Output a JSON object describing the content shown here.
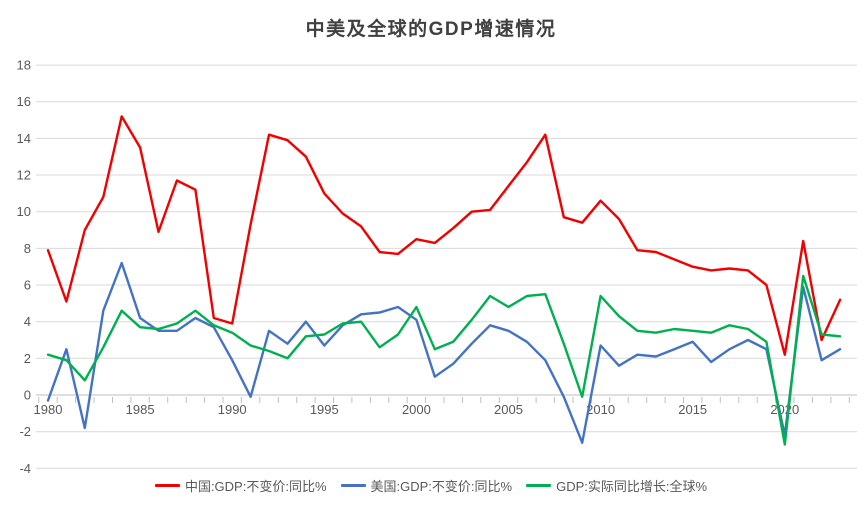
{
  "chart_data": {
    "type": "line",
    "title": "中美及全球的GDP增速情况",
    "xlabel": "",
    "ylabel": "",
    "ylim": [
      -4,
      18
    ],
    "ytick_step": 2,
    "x_ticks": [
      1980,
      1985,
      1990,
      1995,
      2000,
      2005,
      2010,
      2015,
      2020
    ],
    "grid": true,
    "legend_position": "bottom",
    "x": [
      1980,
      1981,
      1982,
      1983,
      1984,
      1985,
      1986,
      1987,
      1988,
      1989,
      1990,
      1991,
      1992,
      1993,
      1994,
      1995,
      1996,
      1997,
      1998,
      1999,
      2000,
      2001,
      2002,
      2003,
      2004,
      2005,
      2006,
      2007,
      2008,
      2009,
      2010,
      2011,
      2012,
      2013,
      2014,
      2015,
      2016,
      2017,
      2018,
      2019,
      2020,
      2021,
      2022,
      2023
    ],
    "series": [
      {
        "name": "中国:GDP:不变价:同比%",
        "color": "#f20000",
        "values": [
          7.9,
          5.1,
          9.0,
          10.8,
          15.2,
          13.5,
          8.9,
          11.7,
          11.2,
          4.2,
          3.9,
          9.3,
          14.2,
          13.9,
          13.0,
          11.0,
          9.9,
          9.2,
          7.8,
          7.7,
          8.5,
          8.3,
          9.1,
          10.0,
          10.1,
          11.4,
          12.7,
          14.2,
          9.7,
          9.4,
          10.6,
          9.6,
          7.9,
          7.8,
          7.4,
          7.0,
          6.8,
          6.9,
          6.8,
          6.0,
          2.2,
          8.4,
          3.0,
          5.2
        ]
      },
      {
        "name": "美国:GDP:不变价:同比%",
        "color": "#4472c4",
        "values": [
          -0.3,
          2.5,
          -1.8,
          4.6,
          7.2,
          4.2,
          3.5,
          3.5,
          4.2,
          3.7,
          1.9,
          -0.1,
          3.5,
          2.8,
          4.0,
          2.7,
          3.8,
          4.4,
          4.5,
          4.8,
          4.1,
          1.0,
          1.7,
          2.8,
          3.8,
          3.5,
          2.9,
          1.9,
          -0.1,
          -2.6,
          2.7,
          1.6,
          2.2,
          2.1,
          2.5,
          2.9,
          1.8,
          2.5,
          3.0,
          2.5,
          -2.2,
          5.9,
          1.9,
          2.5
        ]
      },
      {
        "name": "GDP:实际同比增长:全球%",
        "color": "#00b050",
        "values": [
          2.2,
          1.9,
          0.8,
          2.6,
          4.6,
          3.7,
          3.6,
          3.9,
          4.6,
          3.8,
          3.4,
          2.7,
          2.4,
          2.0,
          3.2,
          3.3,
          3.9,
          4.0,
          2.6,
          3.3,
          4.8,
          2.5,
          2.9,
          4.1,
          5.4,
          4.8,
          5.4,
          5.5,
          2.8,
          -0.1,
          5.4,
          4.3,
          3.5,
          3.4,
          3.6,
          3.5,
          3.4,
          3.8,
          3.6,
          2.9,
          -2.7,
          6.5,
          3.3,
          3.2
        ]
      }
    ],
    "colors": {
      "title_text": "#404040",
      "axis_text": "#595959",
      "gridline": "#d9d9d9",
      "axis_line": "#bfbfbf"
    }
  }
}
